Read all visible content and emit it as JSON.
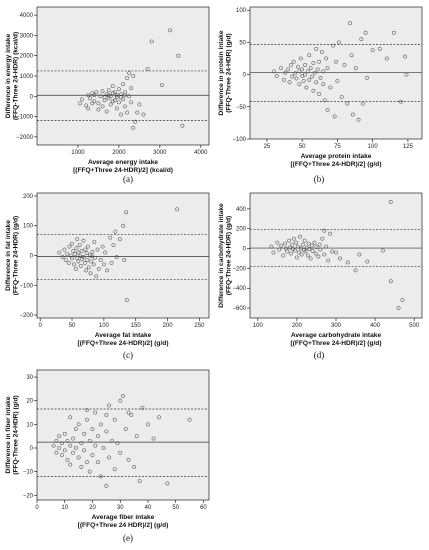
{
  "chart_data": [
    {
      "type": "scatter",
      "panel_label": "(a)",
      "xlabel": [
        "Average energy intake",
        "[(FFQ+Three 24-HDR)/2] (kcal/d)"
      ],
      "ylabel": [
        "Difference in energy intake",
        "(FFQ-Three 24-HDR) (kcal/d)"
      ],
      "xlim": [
        0,
        4200
      ],
      "ylim": [
        -2400,
        4400
      ],
      "xticks": [
        1000,
        2000,
        3000,
        4000
      ],
      "yticks": [
        -2000,
        -1000,
        0,
        1000,
        2000,
        3000,
        4000
      ],
      "hlines": {
        "upper": 1250,
        "mean": 50,
        "lower": -1200
      },
      "points": [
        [
          1050,
          -350
        ],
        [
          1100,
          -150
        ],
        [
          1200,
          -450
        ],
        [
          1250,
          -600
        ],
        [
          1300,
          -100
        ],
        [
          1350,
          150
        ],
        [
          1400,
          -250
        ],
        [
          1400,
          50
        ],
        [
          1450,
          200
        ],
        [
          1500,
          -650
        ],
        [
          1500,
          -350
        ],
        [
          1550,
          0
        ],
        [
          1600,
          250
        ],
        [
          1600,
          -500
        ],
        [
          1650,
          -200
        ],
        [
          1700,
          100
        ],
        [
          1700,
          -750
        ],
        [
          1750,
          300
        ],
        [
          1750,
          -100
        ],
        [
          1800,
          0
        ],
        [
          1800,
          -400
        ],
        [
          1850,
          150
        ],
        [
          1850,
          500
        ],
        [
          1900,
          -200
        ],
        [
          1900,
          200
        ],
        [
          1950,
          -600
        ],
        [
          1950,
          50
        ],
        [
          2000,
          -300
        ],
        [
          2000,
          350
        ],
        [
          2050,
          -900
        ],
        [
          2050,
          100
        ],
        [
          2100,
          -150
        ],
        [
          2100,
          600
        ],
        [
          2150,
          200
        ],
        [
          2150,
          -500
        ],
        [
          2200,
          -800
        ],
        [
          2200,
          900
        ],
        [
          2250,
          0
        ],
        [
          2250,
          1150
        ],
        [
          2300,
          -300
        ],
        [
          2300,
          400
        ],
        [
          2350,
          -1550
        ],
        [
          2350,
          1000
        ],
        [
          2400,
          -1250
        ],
        [
          2450,
          -800
        ],
        [
          2500,
          -400
        ],
        [
          2600,
          -900
        ],
        [
          2700,
          1350
        ],
        [
          2800,
          2700
        ],
        [
          3050,
          550
        ],
        [
          3250,
          3250
        ],
        [
          3450,
          2000
        ],
        [
          3550,
          -1450
        ],
        [
          1250,
          50
        ],
        [
          1350,
          -350
        ],
        [
          1650,
          -50
        ],
        [
          1950,
          -50
        ],
        [
          2050,
          -50
        ],
        [
          2150,
          50
        ],
        [
          1750,
          50
        ],
        [
          1850,
          -250
        ]
      ]
    },
    {
      "type": "scatter",
      "panel_label": "(b)",
      "xlabel": [
        "Average protein intake",
        "[(FFQ+Three 24-HDR)/2] (g/d)"
      ],
      "ylabel": [
        "Difference in protein intake",
        "(FFQ-Three 24-HDR) (g/d)"
      ],
      "xlim": [
        13,
        135
      ],
      "ylim": [
        -100,
        105
      ],
      "xticks": [
        25,
        50,
        75,
        100,
        125
      ],
      "yticks": [
        -100,
        -50,
        0,
        50,
        100
      ],
      "hlines": {
        "upper": 47,
        "mean": 3,
        "lower": -42
      },
      "points": [
        [
          30,
          5
        ],
        [
          32,
          -2
        ],
        [
          35,
          10
        ],
        [
          37,
          -8
        ],
        [
          38,
          3
        ],
        [
          40,
          8
        ],
        [
          41,
          -12
        ],
        [
          42,
          15
        ],
        [
          43,
          -3
        ],
        [
          44,
          20
        ],
        [
          45,
          2
        ],
        [
          46,
          -6
        ],
        [
          47,
          12
        ],
        [
          48,
          -15
        ],
        [
          48,
          5
        ],
        [
          49,
          25
        ],
        [
          50,
          -2
        ],
        [
          50,
          8
        ],
        [
          51,
          -10
        ],
        [
          52,
          0
        ],
        [
          52,
          15
        ],
        [
          53,
          -20
        ],
        [
          54,
          5
        ],
        [
          55,
          -8
        ],
        [
          55,
          30
        ],
        [
          56,
          10
        ],
        [
          57,
          -3
        ],
        [
          58,
          -25
        ],
        [
          58,
          18
        ],
        [
          59,
          3
        ],
        [
          60,
          -12
        ],
        [
          60,
          40
        ],
        [
          61,
          8
        ],
        [
          62,
          -30
        ],
        [
          62,
          20
        ],
        [
          63,
          -5
        ],
        [
          64,
          35
        ],
        [
          65,
          -15
        ],
        [
          65,
          5
        ],
        [
          66,
          -40
        ],
        [
          67,
          25
        ],
        [
          68,
          -55
        ],
        [
          68,
          10
        ],
        [
          70,
          -20
        ],
        [
          72,
          45
        ],
        [
          73,
          -65
        ],
        [
          74,
          20
        ],
        [
          75,
          -10
        ],
        [
          76,
          50
        ],
        [
          78,
          -35
        ],
        [
          80,
          15
        ],
        [
          82,
          -45
        ],
        [
          85,
          30
        ],
        [
          86,
          -62
        ],
        [
          88,
          10
        ],
        [
          90,
          -70
        ],
        [
          92,
          55
        ],
        [
          93,
          -45
        ],
        [
          95,
          65
        ],
        [
          96,
          -5
        ],
        [
          100,
          38
        ],
        [
          105,
          40
        ],
        [
          110,
          25
        ],
        [
          115,
          65
        ],
        [
          120,
          -42
        ],
        [
          123,
          28
        ],
        [
          124,
          0
        ],
        [
          84,
          80
        ]
      ]
    },
    {
      "type": "scatter",
      "panel_label": "(c)",
      "xlabel": [
        "Average fat intake",
        "[(FFQ+Three 24-HDR)/2] (g/d)"
      ],
      "ylabel": [
        "Difference in fat intake",
        "(FFQ-Three 24-HDR) (g/d)"
      ],
      "xlim": [
        -5,
        265
      ],
      "ylim": [
        -210,
        210
      ],
      "xticks": [
        0,
        50,
        100,
        150,
        200,
        250
      ],
      "yticks": [
        -200,
        -100,
        0,
        100,
        200
      ],
      "hlines": {
        "upper": 70,
        "mean": -3,
        "lower": -80
      },
      "points": [
        [
          30,
          10
        ],
        [
          35,
          -5
        ],
        [
          38,
          20
        ],
        [
          40,
          -15
        ],
        [
          42,
          5
        ],
        [
          45,
          -25
        ],
        [
          46,
          30
        ],
        [
          48,
          0
        ],
        [
          50,
          -10
        ],
        [
          50,
          40
        ],
        [
          52,
          15
        ],
        [
          53,
          -30
        ],
        [
          55,
          5
        ],
        [
          56,
          -45
        ],
        [
          57,
          25
        ],
        [
          58,
          -8
        ],
        [
          60,
          10
        ],
        [
          60,
          -20
        ],
        [
          62,
          35
        ],
        [
          63,
          -2
        ],
        [
          64,
          -35
        ],
        [
          65,
          15
        ],
        [
          66,
          -12
        ],
        [
          68,
          50
        ],
        [
          68,
          -5
        ],
        [
          70,
          -25
        ],
        [
          71,
          20
        ],
        [
          72,
          -50
        ],
        [
          73,
          8
        ],
        [
          74,
          -15
        ],
        [
          75,
          30
        ],
        [
          76,
          -40
        ],
        [
          78,
          0
        ],
        [
          79,
          -60
        ],
        [
          80,
          -20
        ],
        [
          82,
          12
        ],
        [
          84,
          -30
        ],
        [
          85,
          45
        ],
        [
          86,
          -8
        ],
        [
          88,
          -70
        ],
        [
          90,
          20
        ],
        [
          92,
          -45
        ],
        [
          95,
          -15
        ],
        [
          98,
          30
        ],
        [
          100,
          -30
        ],
        [
          102,
          10
        ],
        [
          105,
          -50
        ],
        [
          110,
          60
        ],
        [
          112,
          -25
        ],
        [
          115,
          35
        ],
        [
          118,
          80
        ],
        [
          120,
          -5
        ],
        [
          125,
          55
        ],
        [
          130,
          100
        ],
        [
          132,
          -15
        ],
        [
          135,
          145
        ],
        [
          136,
          -150
        ],
        [
          215,
          155
        ],
        [
          58,
          55
        ],
        [
          82,
          -3
        ]
      ]
    },
    {
      "type": "scatter",
      "panel_label": "(d)",
      "xlabel": [
        "Average carbohydrate intake",
        "[(FFQ+Three 24-HDR)/2] (g/d)"
      ],
      "ylabel": [
        "Difference in carbohydrate intake",
        "(FFQ-Three 24-HDR) (g/d)"
      ],
      "xlim": [
        80,
        520
      ],
      "ylim": [
        -700,
        560
      ],
      "xticks": [
        100,
        200,
        300,
        400,
        500
      ],
      "yticks": [
        -600,
        -400,
        -200,
        0,
        200,
        400
      ],
      "hlines": {
        "upper": 190,
        "mean": 5,
        "lower": -180
      },
      "points": [
        [
          135,
          20
        ],
        [
          140,
          -40
        ],
        [
          150,
          60
        ],
        [
          155,
          -10
        ],
        [
          160,
          30
        ],
        [
          165,
          -70
        ],
        [
          170,
          50
        ],
        [
          172,
          0
        ],
        [
          175,
          -30
        ],
        [
          180,
          80
        ],
        [
          182,
          10
        ],
        [
          185,
          -50
        ],
        [
          188,
          40
        ],
        [
          190,
          -5
        ],
        [
          192,
          100
        ],
        [
          195,
          -20
        ],
        [
          198,
          60
        ],
        [
          200,
          -90
        ],
        [
          202,
          20
        ],
        [
          205,
          -40
        ],
        [
          208,
          120
        ],
        [
          210,
          0
        ],
        [
          212,
          -60
        ],
        [
          215,
          40
        ],
        [
          218,
          -15
        ],
        [
          220,
          80
        ],
        [
          222,
          -30
        ],
        [
          225,
          10
        ],
        [
          228,
          -70
        ],
        [
          230,
          50
        ],
        [
          232,
          -5
        ],
        [
          235,
          -100
        ],
        [
          238,
          30
        ],
        [
          240,
          -25
        ],
        [
          245,
          60
        ],
        [
          248,
          -50
        ],
        [
          250,
          15
        ],
        [
          255,
          -80
        ],
        [
          258,
          40
        ],
        [
          260,
          -10
        ],
        [
          265,
          100
        ],
        [
          270,
          -60
        ],
        [
          275,
          20
        ],
        [
          280,
          -120
        ],
        [
          285,
          150
        ],
        [
          290,
          -30
        ],
        [
          300,
          -40
        ],
        [
          310,
          -100
        ],
        [
          330,
          -140
        ],
        [
          350,
          -220
        ],
        [
          360,
          -60
        ],
        [
          380,
          -130
        ],
        [
          440,
          470
        ],
        [
          440,
          -330
        ],
        [
          460,
          -600
        ],
        [
          470,
          -520
        ],
        [
          270,
          180
        ],
        [
          420,
          -20
        ]
      ]
    },
    {
      "type": "scatter",
      "panel_label": "(e)",
      "xlabel": [
        "Average fiber intake",
        "[(FFQ+Three 24 HDR)/2] (g/d)"
      ],
      "ylabel": [
        "Difference in fiber intake",
        "(FFQ-Three 24-HDR) (g/d)"
      ],
      "xlim": [
        0,
        62
      ],
      "ylim": [
        -22,
        33
      ],
      "xticks": [
        0,
        10,
        20,
        30,
        40,
        50,
        60
      ],
      "yticks": [
        -20,
        -10,
        0,
        10,
        20,
        30
      ],
      "hlines": {
        "upper": 16.5,
        "mean": 2.5,
        "lower": -12
      },
      "points": [
        [
          6,
          1
        ],
        [
          7,
          -2
        ],
        [
          7,
          3
        ],
        [
          8,
          0
        ],
        [
          8,
          5
        ],
        [
          9,
          -3
        ],
        [
          9,
          2
        ],
        [
          10,
          -1
        ],
        [
          10,
          6
        ],
        [
          11,
          -5
        ],
        [
          11,
          3
        ],
        [
          12,
          1
        ],
        [
          12,
          -7
        ],
        [
          13,
          4
        ],
        [
          13,
          -2
        ],
        [
          14,
          8
        ],
        [
          14,
          0
        ],
        [
          15,
          -4
        ],
        [
          15,
          10
        ],
        [
          16,
          2
        ],
        [
          16,
          -8
        ],
        [
          17,
          6
        ],
        [
          17,
          -1
        ],
        [
          18,
          12
        ],
        [
          18,
          -6
        ],
        [
          19,
          3
        ],
        [
          19,
          -10
        ],
        [
          20,
          8
        ],
        [
          20,
          -3
        ],
        [
          21,
          15
        ],
        [
          21,
          1
        ],
        [
          22,
          -6
        ],
        [
          22,
          5
        ],
        [
          23,
          -12
        ],
        [
          23,
          10
        ],
        [
          24,
          0
        ],
        [
          25,
          -16
        ],
        [
          25,
          7
        ],
        [
          26,
          18
        ],
        [
          26,
          -4
        ],
        [
          27,
          3
        ],
        [
          28,
          -9
        ],
        [
          28,
          12
        ],
        [
          29,
          2
        ],
        [
          30,
          -2
        ],
        [
          30,
          20
        ],
        [
          31,
          22
        ],
        [
          32,
          8
        ],
        [
          33,
          -5
        ],
        [
          34,
          14
        ],
        [
          35,
          -8
        ],
        [
          36,
          5
        ],
        [
          37,
          -14
        ],
        [
          38,
          17
        ],
        [
          40,
          10
        ],
        [
          42,
          4
        ],
        [
          44,
          13
        ],
        [
          47,
          -15
        ],
        [
          55,
          12
        ],
        [
          12,
          13
        ],
        [
          18,
          16
        ],
        [
          25,
          14
        ],
        [
          33,
          15
        ]
      ]
    }
  ]
}
